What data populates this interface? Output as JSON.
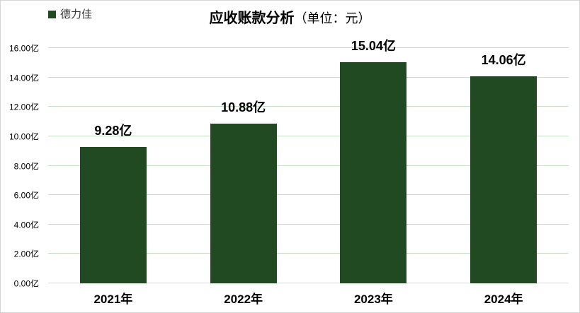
{
  "legend": {
    "label": "德力佳"
  },
  "title": {
    "main": "应收账款分析",
    "unit": "（单位：元）"
  },
  "chart_data": {
    "type": "bar",
    "title": "应收账款分析（单位：元）",
    "legend_entries": [
      "德力佳"
    ],
    "legend_position": "top-left",
    "categories": [
      "2021年",
      "2022年",
      "2023年",
      "2024年"
    ],
    "series": [
      {
        "name": "德力佳",
        "values": [
          9.28,
          10.88,
          15.04,
          14.06
        ]
      }
    ],
    "value_labels": [
      "9.28亿",
      "10.88亿",
      "15.04亿",
      "14.06亿"
    ],
    "y_ticks": [
      "0.00亿",
      "2.00亿",
      "4.00亿",
      "6.00亿",
      "8.00亿",
      "10.00亿",
      "12.00亿",
      "14.00亿",
      "16.00亿"
    ],
    "ylim": [
      0,
      16
    ],
    "y_tick_step": 2,
    "grid": true,
    "xlabel": "",
    "ylabel": "",
    "colors": {
      "bar": "#224A22",
      "gridline": "#C5DEC5",
      "axis_line": "#D9D9D9",
      "text": "#000000"
    }
  }
}
